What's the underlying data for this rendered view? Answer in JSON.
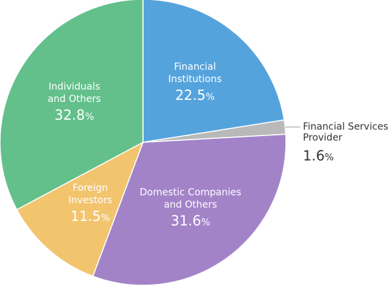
{
  "chart_data": {
    "type": "pie",
    "title": "",
    "unit": "%",
    "slices": [
      {
        "name_lines": [
          "Financial",
          "Institutions"
        ],
        "value": 22.5,
        "value_text": "22.5",
        "color": "#55a3dc",
        "label_pos": "inside"
      },
      {
        "name_lines": [
          "Financial Services",
          "Provider"
        ],
        "value": 1.6,
        "value_text": "1.6",
        "color": "#b9b9b9",
        "label_pos": "outside"
      },
      {
        "name_lines": [
          "Domestic Companies",
          "and Others"
        ],
        "value": 31.6,
        "value_text": "31.6",
        "color": "#a383c8",
        "label_pos": "inside"
      },
      {
        "name_lines": [
          "Foreign",
          "Investors"
        ],
        "value": 11.5,
        "value_text": "11.5",
        "color": "#f2c46e",
        "label_pos": "inside"
      },
      {
        "name_lines": [
          "Individuals",
          "and Others"
        ],
        "value": 32.8,
        "value_text": "32.8",
        "color": "#63c08a",
        "label_pos": "inside"
      }
    ]
  }
}
